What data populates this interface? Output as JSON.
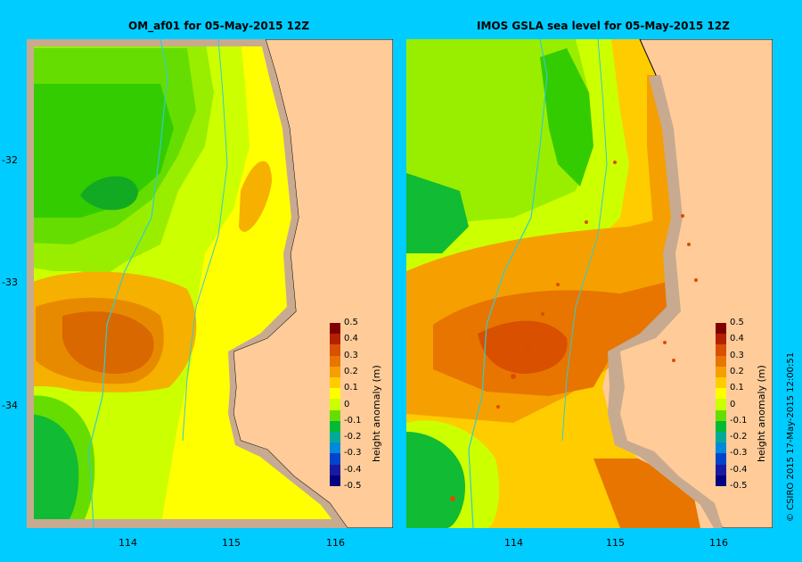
{
  "panels": {
    "left": {
      "title": "OM_af01  for 05-May-2015 12Z"
    },
    "right": {
      "title": "IMOS GSLA sea level  for 05-May-2015 12Z"
    }
  },
  "x_ticks": [
    "114",
    "115",
    "116"
  ],
  "y_ticks": [
    "-32",
    "-33",
    "-34"
  ],
  "colorbar": {
    "label": "height anomaly (m)",
    "ticks": [
      "0.5",
      "0.4",
      "0.3",
      "0.2",
      "0.1",
      "0",
      "-0.1",
      "-0.2",
      "-0.3",
      "-0.4",
      "-0.5"
    ],
    "colors": [
      "#800000",
      "#b22200",
      "#d95000",
      "#e87500",
      "#f5a000",
      "#ffcc00",
      "#ffff00",
      "#ccff00",
      "#66dd00",
      "#00bb33",
      "#00aa99",
      "#0088dd",
      "#0044cc",
      "#1a1aa0",
      "#000080"
    ]
  },
  "palette": {
    "land": "#ffcc99",
    "shelf": "#c8aa90",
    "isobath": "#33cccc",
    "background": "#00ccff"
  },
  "credit": "© CSIRO 2015   17-May-2015 12:00:51"
}
